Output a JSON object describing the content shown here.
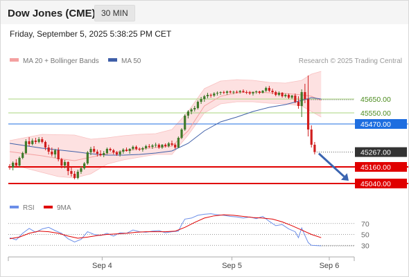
{
  "header": {
    "title": "Dow Jones (CME)",
    "interval": "30 MIN"
  },
  "datetime": "Friday, September 5, 2025 5:38:25 PM CET",
  "credit": "Research © 2025 Trading Central",
  "colors": {
    "bollinger_line": "#f4a0a0",
    "bollinger_fill": "#fde1e1",
    "ma50": "#3f5fa8",
    "candle_up": "#3f7a2a",
    "candle_down": "#d01e1e",
    "level_green": "#a8d47e",
    "level_green_text": "#4a8a1c",
    "level_blue": "#1e6ee0",
    "level_red": "#e00000",
    "arrow": "#3a64b0",
    "rsi": "#6b8ee8",
    "rsi_ma": "#e00000"
  },
  "chart_data": [
    {
      "type": "candlestick",
      "legend": [
        {
          "label": "MA 20 + Bollinger Bands",
          "color": "#f4a0a0"
        },
        {
          "label": "MA 50",
          "color": "#3f5fa8"
        }
      ],
      "x_ticks": [
        "Sep 4",
        "Sep 5",
        "Sep 6"
      ],
      "y_range": [
        44940,
        45860
      ],
      "levels": [
        {
          "label": "45650.00",
          "value": 45650,
          "kind": "resistance"
        },
        {
          "label": "45550.00",
          "value": 45550,
          "kind": "resistance"
        },
        {
          "label": "45470.00",
          "value": 45470,
          "kind": "pivot"
        },
        {
          "label": "45267.00",
          "value": 45267,
          "kind": "last_price"
        },
        {
          "label": "45160.00",
          "value": 45160,
          "kind": "support"
        },
        {
          "label": "45040.00",
          "value": 45040,
          "kind": "support"
        }
      ],
      "ohlc": [
        [
          45166,
          45180,
          45140,
          45155
        ],
        [
          45155,
          45200,
          45135,
          45190
        ],
        [
          45190,
          45215,
          45160,
          45170
        ],
        [
          45170,
          45235,
          45160,
          45225
        ],
        [
          45225,
          45270,
          45215,
          45260
        ],
        [
          45260,
          45360,
          45250,
          45345
        ],
        [
          45345,
          45375,
          45310,
          45325
        ],
        [
          45325,
          45365,
          45315,
          45350
        ],
        [
          45350,
          45370,
          45325,
          45340
        ],
        [
          45340,
          45375,
          45330,
          45360
        ],
        [
          45360,
          45375,
          45330,
          45340
        ],
        [
          45340,
          45350,
          45280,
          45300
        ],
        [
          45300,
          45320,
          45250,
          45270
        ],
        [
          45270,
          45300,
          45235,
          45250
        ],
        [
          45250,
          45290,
          45225,
          45280
        ],
        [
          45280,
          45300,
          45200,
          45215
        ],
        [
          45215,
          45225,
          45150,
          45170
        ],
        [
          45170,
          45210,
          45150,
          45195
        ],
        [
          45195,
          45200,
          45100,
          45130
        ],
        [
          45130,
          45160,
          45090,
          45110
        ],
        [
          45110,
          45130,
          45070,
          45080
        ],
        [
          45080,
          45140,
          45070,
          45125
        ],
        [
          45125,
          45165,
          45110,
          45150
        ],
        [
          45150,
          45195,
          45140,
          45185
        ],
        [
          45185,
          45275,
          45175,
          45265
        ],
        [
          45265,
          45305,
          45245,
          45290
        ],
        [
          45290,
          45310,
          45260,
          45270
        ],
        [
          45270,
          45285,
          45235,
          45255
        ],
        [
          45255,
          45280,
          45235,
          45245
        ],
        [
          45245,
          45275,
          45230,
          45260
        ],
        [
          45260,
          45300,
          45250,
          45290
        ],
        [
          45290,
          45300,
          45270,
          45280
        ],
        [
          45280,
          45290,
          45250,
          45265
        ],
        [
          45265,
          45275,
          45240,
          45250
        ],
        [
          45250,
          45280,
          45235,
          45270
        ],
        [
          45270,
          45295,
          45255,
          45285
        ],
        [
          45285,
          45300,
          45270,
          45275
        ],
        [
          45275,
          45295,
          45255,
          45290
        ],
        [
          45290,
          45315,
          45280,
          45305
        ],
        [
          45305,
          45315,
          45280,
          45290
        ],
        [
          45290,
          45300,
          45275,
          45285
        ],
        [
          45285,
          45305,
          45270,
          45295
        ],
        [
          45295,
          45320,
          45285,
          45310
        ],
        [
          45310,
          45325,
          45295,
          45305
        ],
        [
          45305,
          45325,
          45290,
          45315
        ],
        [
          45315,
          45335,
          45300,
          45320
        ],
        [
          45320,
          45330,
          45290,
          45300
        ],
        [
          45300,
          45325,
          45290,
          45320
        ],
        [
          45320,
          45330,
          45300,
          45310
        ],
        [
          45310,
          45340,
          45300,
          45330
        ],
        [
          45330,
          45350,
          45310,
          45320
        ],
        [
          45320,
          45330,
          45290,
          45300
        ],
        [
          45300,
          45380,
          45295,
          45370
        ],
        [
          45370,
          45440,
          45360,
          45430
        ],
        [
          45430,
          45540,
          45420,
          45530
        ],
        [
          45530,
          45570,
          45510,
          45560
        ],
        [
          45560,
          45585,
          45540,
          45575
        ],
        [
          45575,
          45600,
          45560,
          45585
        ],
        [
          45585,
          45640,
          45575,
          45630
        ],
        [
          45630,
          45665,
          45615,
          45650
        ],
        [
          45650,
          45680,
          45630,
          45670
        ],
        [
          45670,
          45695,
          45655,
          45680
        ],
        [
          45680,
          45690,
          45660,
          45675
        ],
        [
          45675,
          45700,
          45665,
          45690
        ],
        [
          45690,
          45705,
          45675,
          45695
        ],
        [
          45695,
          45705,
          45680,
          45700
        ],
        [
          45700,
          45710,
          45685,
          45695
        ],
        [
          45695,
          45712,
          45680,
          45705
        ],
        [
          45705,
          45712,
          45690,
          45698
        ],
        [
          45698,
          45710,
          45685,
          45702
        ],
        [
          45702,
          45712,
          45690,
          45700
        ],
        [
          45700,
          45715,
          45690,
          45708
        ],
        [
          45708,
          45720,
          45695,
          45700
        ],
        [
          45700,
          45712,
          45685,
          45698
        ],
        [
          45698,
          45708,
          45680,
          45690
        ],
        [
          45690,
          45705,
          45675,
          45700
        ],
        [
          45700,
          45712,
          45688,
          45705
        ],
        [
          45705,
          45710,
          45685,
          45695
        ],
        [
          45695,
          45715,
          45690,
          45710
        ],
        [
          45710,
          45740,
          45700,
          45730
        ],
        [
          45730,
          45745,
          45700,
          45710
        ],
        [
          45710,
          45725,
          45685,
          45700
        ],
        [
          45700,
          45710,
          45670,
          45680
        ],
        [
          45680,
          45705,
          45670,
          45695
        ],
        [
          45695,
          45700,
          45660,
          45670
        ],
        [
          45670,
          45690,
          45660,
          45680
        ],
        [
          45680,
          45690,
          45650,
          45660
        ],
        [
          45660,
          45680,
          45650,
          45675
        ],
        [
          45675,
          45690,
          45620,
          45630
        ],
        [
          45630,
          45670,
          45580,
          45600
        ],
        [
          45600,
          45720,
          45520,
          45700
        ],
        [
          45700,
          45760,
          45620,
          45650
        ],
        [
          45650,
          45820,
          45380,
          45430
        ],
        [
          45430,
          45460,
          45300,
          45320
        ],
        [
          45320,
          45340,
          45250,
          45267
        ]
      ],
      "ma20_upper": [
        [
          0,
          45350
        ],
        [
          10,
          45395
        ],
        [
          20,
          45390
        ],
        [
          25,
          45360
        ],
        [
          30,
          45370
        ],
        [
          35,
          45385
        ],
        [
          40,
          45395
        ],
        [
          45,
          45400
        ],
        [
          50,
          45430
        ],
        [
          55,
          45560
        ],
        [
          60,
          45725
        ],
        [
          65,
          45780
        ],
        [
          70,
          45790
        ],
        [
          75,
          45785
        ],
        [
          80,
          45770
        ],
        [
          85,
          45765
        ],
        [
          90,
          45785
        ],
        [
          93,
          45830
        ],
        [
          96,
          45850
        ]
      ],
      "ma20_lower": [
        [
          0,
          45180
        ],
        [
          5,
          45150
        ],
        [
          10,
          45120
        ],
        [
          15,
          45090
        ],
        [
          20,
          45080
        ],
        [
          25,
          45110
        ],
        [
          30,
          45180
        ],
        [
          35,
          45210
        ],
        [
          40,
          45230
        ],
        [
          45,
          45250
        ],
        [
          50,
          45250
        ],
        [
          55,
          45390
        ],
        [
          60,
          45550
        ],
        [
          65,
          45615
        ],
        [
          70,
          45630
        ],
        [
          75,
          45630
        ],
        [
          80,
          45620
        ],
        [
          85,
          45615
        ],
        [
          90,
          45600
        ],
        [
          93,
          45560
        ],
        [
          96,
          45520
        ]
      ],
      "ma20_mid": [
        [
          0,
          45270
        ],
        [
          5,
          45255
        ],
        [
          10,
          45240
        ],
        [
          15,
          45220
        ],
        [
          20,
          45205
        ],
        [
          25,
          45230
        ],
        [
          30,
          45255
        ],
        [
          35,
          45275
        ],
        [
          40,
          45290
        ],
        [
          45,
          45300
        ],
        [
          50,
          45310
        ],
        [
          55,
          45420
        ],
        [
          60,
          45600
        ],
        [
          65,
          45670
        ],
        [
          70,
          45695
        ],
        [
          75,
          45700
        ],
        [
          80,
          45695
        ],
        [
          85,
          45690
        ],
        [
          90,
          45680
        ],
        [
          93,
          45670
        ],
        [
          96,
          45640
        ]
      ],
      "ma50": [
        [
          0,
          45330
        ],
        [
          10,
          45295
        ],
        [
          20,
          45270
        ],
        [
          25,
          45255
        ],
        [
          30,
          45245
        ],
        [
          35,
          45245
        ],
        [
          40,
          45250
        ],
        [
          45,
          45260
        ],
        [
          50,
          45275
        ],
        [
          55,
          45330
        ],
        [
          60,
          45420
        ],
        [
          65,
          45485
        ],
        [
          70,
          45520
        ],
        [
          75,
          45560
        ],
        [
          80,
          45590
        ],
        [
          85,
          45610
        ],
        [
          90,
          45640
        ],
        [
          93,
          45660
        ],
        [
          96,
          45650
        ]
      ]
    },
    {
      "type": "line",
      "legend": [
        {
          "label": "RSI",
          "color": "#6b8ee8"
        },
        {
          "label": "9MA",
          "color": "#e00000"
        }
      ],
      "y_ticks": [
        70,
        50,
        30
      ],
      "y_range": [
        10,
        90
      ],
      "rsi": [
        [
          0,
          44
        ],
        [
          2,
          40
        ],
        [
          4,
          52
        ],
        [
          6,
          61
        ],
        [
          8,
          54
        ],
        [
          10,
          60
        ],
        [
          12,
          63
        ],
        [
          14,
          57
        ],
        [
          16,
          52
        ],
        [
          18,
          42
        ],
        [
          20,
          36
        ],
        [
          22,
          41
        ],
        [
          24,
          55
        ],
        [
          26,
          50
        ],
        [
          28,
          48
        ],
        [
          30,
          52
        ],
        [
          32,
          47
        ],
        [
          34,
          53
        ],
        [
          36,
          52
        ],
        [
          38,
          58
        ],
        [
          40,
          55
        ],
        [
          42,
          54
        ],
        [
          44,
          56
        ],
        [
          46,
          57
        ],
        [
          48,
          53
        ],
        [
          50,
          55
        ],
        [
          52,
          56
        ],
        [
          53,
          68
        ],
        [
          54,
          78
        ],
        [
          56,
          80
        ],
        [
          58,
          85
        ],
        [
          60,
          87
        ],
        [
          62,
          88
        ],
        [
          64,
          86
        ],
        [
          66,
          85
        ],
        [
          68,
          83
        ],
        [
          70,
          82
        ],
        [
          72,
          80
        ],
        [
          74,
          82
        ],
        [
          76,
          79
        ],
        [
          78,
          83
        ],
        [
          80,
          74
        ],
        [
          82,
          66
        ],
        [
          84,
          68
        ],
        [
          86,
          60
        ],
        [
          88,
          55
        ],
        [
          89,
          44
        ],
        [
          90,
          62
        ],
        [
          91,
          48
        ],
        [
          92,
          35
        ],
        [
          93,
          30
        ],
        [
          96,
          29
        ]
      ],
      "ma9": [
        [
          0,
          42
        ],
        [
          3,
          45
        ],
        [
          6,
          52
        ],
        [
          9,
          56
        ],
        [
          12,
          55
        ],
        [
          15,
          52
        ],
        [
          18,
          47
        ],
        [
          21,
          43
        ],
        [
          24,
          45
        ],
        [
          27,
          48
        ],
        [
          30,
          50
        ],
        [
          33,
          51
        ],
        [
          36,
          52
        ],
        [
          39,
          54
        ],
        [
          42,
          55
        ],
        [
          45,
          55
        ],
        [
          48,
          55
        ],
        [
          51,
          56
        ],
        [
          54,
          63
        ],
        [
          57,
          72
        ],
        [
          60,
          80
        ],
        [
          63,
          84
        ],
        [
          66,
          86
        ],
        [
          69,
          85
        ],
        [
          72,
          83
        ],
        [
          75,
          81
        ],
        [
          78,
          80
        ],
        [
          81,
          78
        ],
        [
          84,
          73
        ],
        [
          87,
          66
        ],
        [
          90,
          58
        ],
        [
          93,
          50
        ],
        [
          96,
          44
        ]
      ]
    }
  ]
}
